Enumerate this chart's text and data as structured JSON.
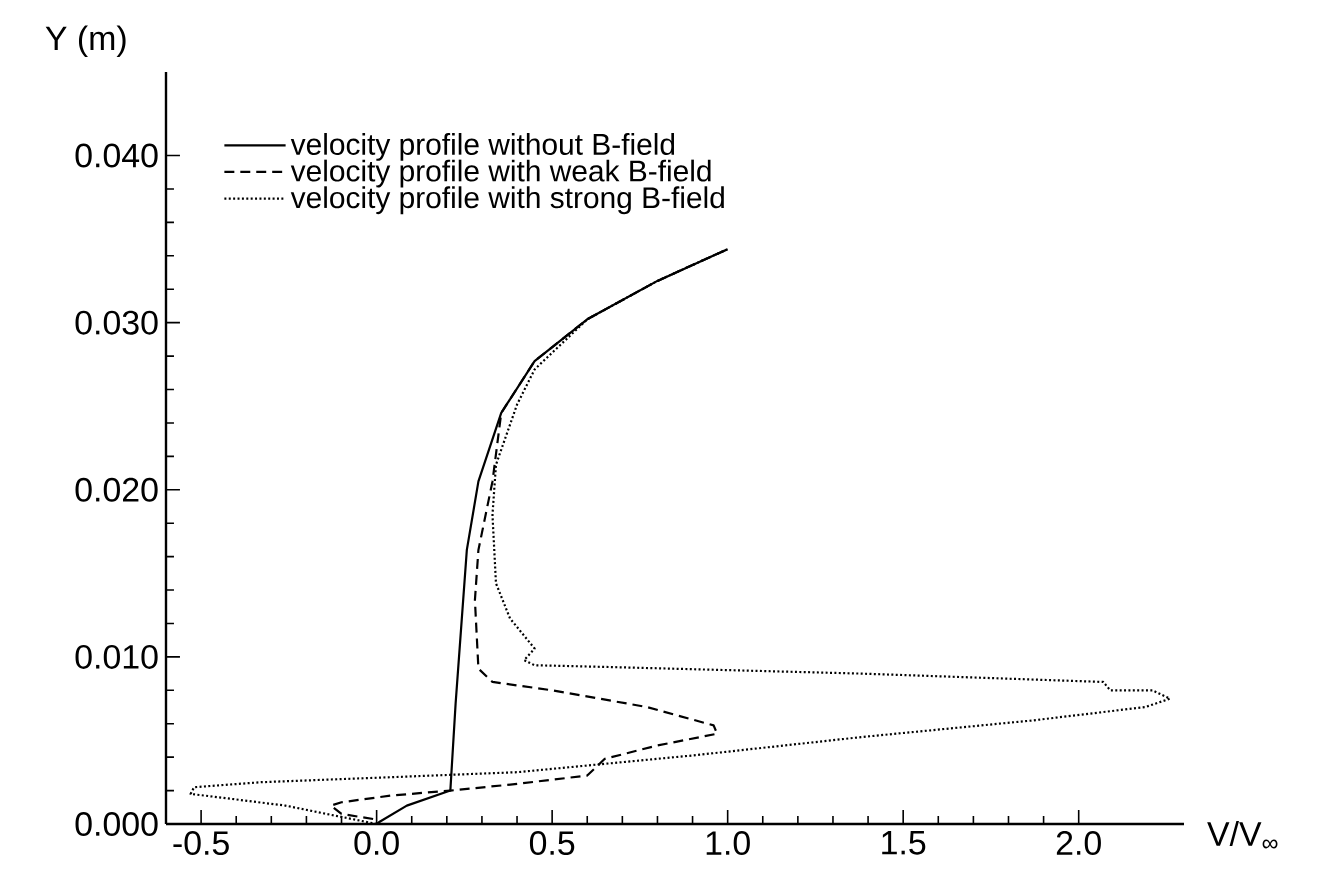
{
  "chart_data": {
    "type": "line",
    "xlabel": "V/V$_{∞}$",
    "ylabel": "Y (m)",
    "xlim": [
      -0.6,
      2.3
    ],
    "ylim": [
      0,
      0.045
    ],
    "xticks": [
      {
        "value": -0.5,
        "label": "-0.5"
      },
      {
        "value": 0,
        "label": "0.0"
      },
      {
        "value": 0.5,
        "label": "0.5"
      },
      {
        "value": 1,
        "label": "1.0"
      },
      {
        "value": 1.5,
        "label": "1.5"
      },
      {
        "value": 2,
        "label": "2.0"
      }
    ],
    "yticks": [
      {
        "value": 0,
        "label": "0.000"
      },
      {
        "value": 0.01,
        "label": "0.010"
      },
      {
        "value": 0.02,
        "label": "0.020"
      },
      {
        "value": 0.03,
        "label": "0.030"
      },
      {
        "value": 0.04,
        "label": "0.040"
      }
    ],
    "legend": "top left",
    "grid": false,
    "marker": "none",
    "series": [
      {
        "name": "velocity profile without B-field",
        "color": "#000000",
        "line_style": "solid",
        "x": [
          0,
          0.01,
          0.086,
          0.21,
          0.225,
          0.257,
          0.29,
          0.355,
          0.45,
          0.6,
          0.8,
          1.0
        ],
        "values": [
          0,
          0.00015,
          0.0011,
          0.002,
          0.0072,
          0.0164,
          0.0205,
          0.0246,
          0.0277,
          0.0302,
          0.0325,
          0.0344
        ]
      },
      {
        "name": "velocity profile with weak B-field",
        "color": "#000000",
        "line_style": "dashed",
        "x": [
          -0.01,
          -0.1,
          -0.13,
          -0.1,
          0.04,
          0.21,
          0.4,
          0.6,
          0.65,
          0.8,
          0.97,
          0.96,
          0.77,
          0.5,
          0.33,
          0.29,
          0.28,
          0.29,
          0.33,
          0.355,
          0.45,
          0.6,
          0.8,
          1.0
        ],
        "values": [
          0.0003,
          0.0006,
          0.0011,
          0.0013,
          0.0017,
          0.002,
          0.0024,
          0.0029,
          0.0039,
          0.0047,
          0.0054,
          0.0059,
          0.007,
          0.008,
          0.0085,
          0.0093,
          0.0134,
          0.0164,
          0.0205,
          0.0246,
          0.0277,
          0.0302,
          0.0325,
          0.0344
        ]
      },
      {
        "name": "velocity profile with strong B-field",
        "color": "#000000",
        "line_style": "dotted",
        "x": [
          0.0,
          -0.26,
          -0.45,
          -0.53,
          -0.52,
          -0.33,
          0.04,
          0.4,
          0.9,
          1.38,
          1.87,
          2.19,
          2.26,
          2.21,
          2.09,
          2.07,
          1.38,
          0.65,
          0.45,
          0.42,
          0.45,
          0.38,
          0.34,
          0.33,
          0.34,
          0.4,
          0.45,
          0.6,
          0.8,
          1.0
        ],
        "values": [
          0.0,
          0.0011,
          0.0016,
          0.0018,
          0.0022,
          0.0025,
          0.0028,
          0.0031,
          0.0041,
          0.0052,
          0.0062,
          0.007,
          0.0075,
          0.008,
          0.008,
          0.0085,
          0.009,
          0.0094,
          0.0095,
          0.0098,
          0.0105,
          0.0123,
          0.0144,
          0.0185,
          0.0215,
          0.0251,
          0.0272,
          0.0302,
          0.0325,
          0.0344
        ]
      }
    ]
  }
}
